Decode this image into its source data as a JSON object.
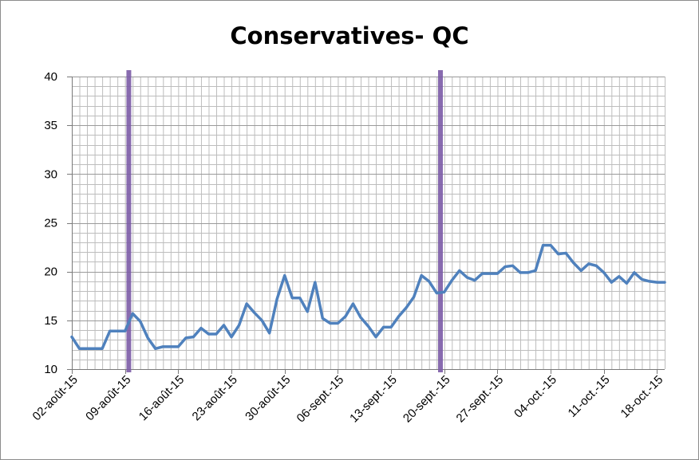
{
  "chart_data": {
    "type": "line",
    "title": "Conservatives- QC",
    "xlabel": "",
    "ylabel": "",
    "ylim": [
      10,
      40
    ],
    "yticks": [
      10,
      15,
      20,
      25,
      30,
      35,
      40
    ],
    "grid": true,
    "start_date": "2015-08-02",
    "x_tick_labels": [
      "02-août-15",
      "09-août-15",
      "16-août-15",
      "23-août-15",
      "30-août-15",
      "06-sept.-15",
      "13-sept.-15",
      "20-sept.-15",
      "27-sept.-15",
      "04-oct.-15",
      "11-oct.-15",
      "18-oct.-15"
    ],
    "series": [
      {
        "color": "#4f81bd",
        "x": [
          "2015-08-02",
          "2015-08-03",
          "2015-08-04",
          "2015-08-05",
          "2015-08-06",
          "2015-08-07",
          "2015-08-08",
          "2015-08-09",
          "2015-08-10",
          "2015-08-11",
          "2015-08-12",
          "2015-08-13",
          "2015-08-14",
          "2015-08-15",
          "2015-08-16",
          "2015-08-17",
          "2015-08-18",
          "2015-08-19",
          "2015-08-20",
          "2015-08-21",
          "2015-08-22",
          "2015-08-23",
          "2015-08-24",
          "2015-08-25",
          "2015-08-26",
          "2015-08-27",
          "2015-08-28",
          "2015-08-29",
          "2015-08-30",
          "2015-08-31",
          "2015-09-01",
          "2015-09-02",
          "2015-09-03",
          "2015-09-04",
          "2015-09-05",
          "2015-09-06",
          "2015-09-07",
          "2015-09-08",
          "2015-09-09",
          "2015-09-10",
          "2015-09-11",
          "2015-09-12",
          "2015-09-13",
          "2015-09-14",
          "2015-09-15",
          "2015-09-16",
          "2015-09-17",
          "2015-09-18",
          "2015-09-19",
          "2015-09-20",
          "2015-09-21",
          "2015-09-22",
          "2015-09-23",
          "2015-09-24",
          "2015-09-25",
          "2015-09-26",
          "2015-09-27",
          "2015-09-28",
          "2015-09-29",
          "2015-09-30",
          "2015-10-01",
          "2015-10-02",
          "2015-10-03",
          "2015-10-04",
          "2015-10-05",
          "2015-10-06",
          "2015-10-07",
          "2015-10-08",
          "2015-10-09",
          "2015-10-10",
          "2015-10-11",
          "2015-10-12",
          "2015-10-13",
          "2015-10-14",
          "2015-10-15",
          "2015-10-16",
          "2015-10-17",
          "2015-10-18",
          "2015-10-19"
        ],
        "values": [
          13.3,
          12.1,
          12.1,
          12.1,
          12.1,
          13.9,
          13.9,
          13.9,
          15.7,
          14.9,
          13.2,
          12.1,
          12.3,
          12.3,
          12.3,
          13.2,
          13.3,
          14.2,
          13.6,
          13.6,
          14.5,
          13.3,
          14.5,
          16.7,
          15.8,
          15.0,
          13.7,
          17.2,
          19.6,
          17.3,
          17.3,
          15.9,
          18.9,
          15.2,
          14.7,
          14.7,
          15.4,
          16.7,
          15.3,
          14.4,
          13.3,
          14.3,
          14.3,
          15.4,
          16.3,
          17.4,
          19.6,
          19.0,
          17.8,
          17.9,
          19.1,
          20.1,
          19.4,
          19.1,
          19.8,
          19.8,
          19.8,
          20.5,
          20.6,
          19.9,
          19.9,
          20.1,
          22.7,
          22.7,
          21.8,
          21.9,
          20.9,
          20.1,
          20.8,
          20.6,
          19.9,
          18.9,
          19.5,
          18.8,
          19.9,
          19.2,
          19.0,
          18.9,
          18.9
        ]
      }
    ],
    "vertical_markers": [
      {
        "x": "2015-08-09",
        "color": "#7b5ba6"
      },
      {
        "x": "2015-09-19",
        "color": "#7b5ba6"
      }
    ]
  }
}
